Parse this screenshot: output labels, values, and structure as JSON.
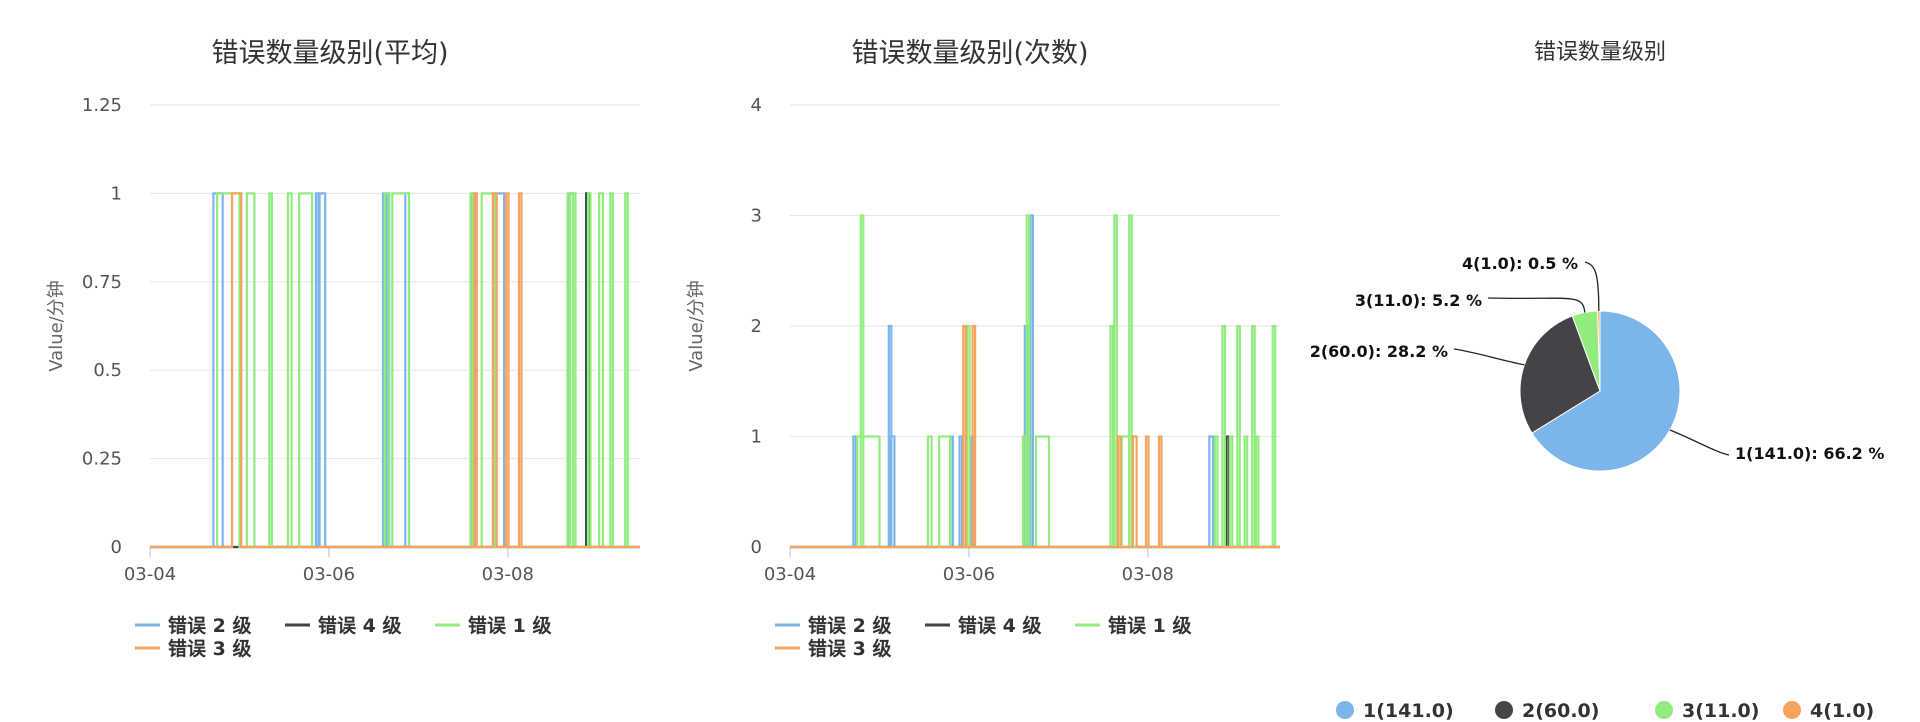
{
  "colors": {
    "level2": "#7cb5ec",
    "level4": "#434348",
    "level1": "#90ed7d",
    "level3": "#f7a35c",
    "grid": "#e6e6e6",
    "axis": "#ccd6eb"
  },
  "chart_data": [
    {
      "id": "avg",
      "type": "line",
      "title": "错误数量级别(平均)",
      "ylabel": "Value/分钟",
      "ylim": [
        0,
        1.25
      ],
      "yticks": [
        "0",
        "0.25",
        "0.5",
        "0.75",
        "1",
        "1.25"
      ],
      "ytick_values": [
        0,
        0.25,
        0.5,
        0.75,
        1,
        1.25
      ],
      "xlim": [
        "03-04",
        "03-09T12"
      ],
      "xticks": [
        "03-04",
        "03-06",
        "03-08"
      ],
      "legend_position": "bottom-left",
      "series": [
        {
          "name": "错误 2 级",
          "color_key": "level2",
          "spikes": [
            [
              "03-04T17:00",
              "03-04T19:30",
              1
            ],
            [
              "03-05T20:30",
              "03-05T21:00",
              1
            ],
            [
              "03-05T21:30",
              "03-05T23:00",
              1
            ],
            [
              "03-06T14:30",
              "03-06T15:00",
              1
            ],
            [
              "03-06T15:30",
              "03-06T16:00",
              1
            ],
            [
              "03-06T20:30",
              "03-06T21:30",
              1
            ],
            [
              "03-07T14:30",
              "03-07T15:00",
              1
            ],
            [
              "03-07T21:00",
              "03-07T23:00",
              1
            ],
            [
              "03-08T16:30",
              "03-08T17:30",
              1
            ]
          ]
        },
        {
          "name": "错误 4 级",
          "color_key": "level4",
          "spikes": [
            [
              "03-08T21:00",
              "03-08T21:30",
              1
            ]
          ]
        },
        {
          "name": "错误 1 级",
          "color_key": "level1",
          "spikes": [
            [
              "03-04T18:00",
              "03-05T00:00",
              1
            ],
            [
              "03-05T02:00",
              "03-05T04:00",
              1
            ],
            [
              "03-05T08:00",
              "03-05T08:30",
              1
            ],
            [
              "03-05T13:00",
              "03-05T14:00",
              1
            ],
            [
              "03-05T16:00",
              "03-05T19:30",
              1
            ],
            [
              "03-06T15:00",
              "03-06T16:00",
              1
            ],
            [
              "03-06T17:00",
              "03-06T21:30",
              1
            ],
            [
              "03-07T14:00",
              "03-07T14:30",
              1
            ],
            [
              "03-07T17:00",
              "03-07T20:30",
              1
            ],
            [
              "03-08T16:00",
              "03-08T16:30",
              1
            ],
            [
              "03-08T17:30",
              "03-08T18:00",
              1
            ],
            [
              "03-08T21:30",
              "03-08T22:00",
              1
            ],
            [
              "03-09T00:30",
              "03-09T01:30",
              1
            ],
            [
              "03-09T03:30",
              "03-09T04:00",
              1
            ],
            [
              "03-09T07:30",
              "03-09T08:00",
              1
            ]
          ]
        },
        {
          "name": "错误 3 级",
          "color_key": "level3",
          "spikes": [
            [
              "03-04T22:00",
              "03-05T00:30",
              1
            ],
            [
              "03-07T15:00",
              "03-07T15:30",
              1
            ],
            [
              "03-07T20:00",
              "03-07T21:00",
              1
            ],
            [
              "03-07T23:30",
              "03-08T00:00",
              1
            ],
            [
              "03-08T03:00",
              "03-08T03:30",
              1
            ]
          ]
        }
      ]
    },
    {
      "id": "cnt",
      "type": "line",
      "title": "错误数量级别(次数)",
      "ylabel": "Value/分钟",
      "ylim": [
        0,
        4
      ],
      "yticks": [
        "0",
        "1",
        "2",
        "3",
        "4"
      ],
      "ytick_values": [
        0,
        1,
        2,
        3,
        4
      ],
      "xlim": [
        "03-04",
        "03-09T12"
      ],
      "xticks": [
        "03-04",
        "03-06",
        "03-08"
      ],
      "legend_position": "bottom-left",
      "series": [
        {
          "name": "错误 2 级",
          "color_key": "level2",
          "spikes": [
            [
              "03-04T17:00",
              "03-04T17:30",
              1
            ],
            [
              "03-05T02:30",
              "03-05T03:00",
              2
            ],
            [
              "03-05T03:00",
              "03-05T04:00",
              1
            ],
            [
              "03-05T19:00",
              "03-05T19:30",
              1
            ],
            [
              "03-05T21:30",
              "03-05T22:00",
              1
            ],
            [
              "03-06T00:30",
              "03-06T01:00",
              1
            ],
            [
              "03-06T15:00",
              "03-06T15:30",
              2
            ],
            [
              "03-06T16:30",
              "03-06T17:00",
              3
            ],
            [
              "03-08T16:30",
              "03-08T17:30",
              1
            ]
          ]
        },
        {
          "name": "错误 4 级",
          "color_key": "level4",
          "spikes": [
            [
              "03-08T21:00",
              "03-08T21:30",
              1
            ]
          ]
        },
        {
          "name": "错误 1 级",
          "color_key": "level1",
          "spikes": [
            [
              "03-04T18:00",
              "03-05T00:00",
              1
            ],
            [
              "03-04T19:00",
              "03-04T19:30",
              3
            ],
            [
              "03-05T13:00",
              "03-05T14:00",
              1
            ],
            [
              "03-05T16:00",
              "03-05T19:00",
              1
            ],
            [
              "03-05T23:30",
              "03-06T00:00",
              2
            ],
            [
              "03-06T14:30",
              "03-06T15:00",
              1
            ],
            [
              "03-06T15:30",
              "03-06T16:00",
              3
            ],
            [
              "03-06T18:00",
              "03-06T21:30",
              1
            ],
            [
              "03-07T14:00",
              "03-07T14:30",
              2
            ],
            [
              "03-07T15:00",
              "03-07T15:30",
              3
            ],
            [
              "03-07T17:00",
              "03-07T20:00",
              1
            ],
            [
              "03-07T19:00",
              "03-07T19:30",
              3
            ],
            [
              "03-08T18:00",
              "03-08T18:30",
              1
            ],
            [
              "03-08T20:00",
              "03-08T20:30",
              2
            ],
            [
              "03-08T22:00",
              "03-08T22:30",
              1
            ],
            [
              "03-09T00:00",
              "03-09T00:30",
              2
            ],
            [
              "03-09T02:00",
              "03-09T02:30",
              1
            ],
            [
              "03-09T04:00",
              "03-09T04:30",
              2
            ],
            [
              "03-09T05:00",
              "03-09T05:30",
              1
            ],
            [
              "03-09T09:30",
              "03-09T10:00",
              2
            ]
          ]
        },
        {
          "name": "错误 3 级",
          "color_key": "level3",
          "spikes": [
            [
              "03-05T22:30",
              "03-05T23:00",
              2
            ],
            [
              "03-06T01:00",
              "03-06T01:30",
              2
            ],
            [
              "03-07T16:00",
              "03-07T16:30",
              1
            ],
            [
              "03-07T20:00",
              "03-07T21:00",
              1
            ],
            [
              "03-07T23:30",
              "03-08T00:00",
              1
            ],
            [
              "03-08T03:00",
              "03-08T03:30",
              1
            ]
          ]
        }
      ]
    },
    {
      "id": "pie",
      "type": "pie",
      "title": "错误数量级别",
      "legend_position": "bottom",
      "slices": [
        {
          "name": "1(141.0)",
          "value": 141.0,
          "percent": 66.2,
          "label": "1(141.0): 66.2 %",
          "color_key": "level2"
        },
        {
          "name": "2(60.0)",
          "value": 60.0,
          "percent": 28.2,
          "label": "2(60.0): 28.2 %",
          "color_key": "level4"
        },
        {
          "name": "3(11.0)",
          "value": 11.0,
          "percent": 5.2,
          "label": "3(11.0): 5.2 %",
          "color_key": "level1"
        },
        {
          "name": "4(1.0)",
          "value": 1.0,
          "percent": 0.5,
          "label": "4(1.0): 0.5 %",
          "color_key": "level3"
        }
      ]
    }
  ]
}
